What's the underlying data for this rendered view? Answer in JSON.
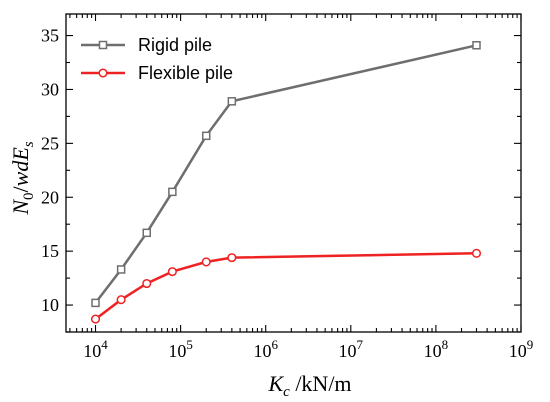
{
  "chart_data": {
    "type": "line",
    "x_scale": "log",
    "xlabel": "K_c /kN/m",
    "ylabel": "N_0/wdE_s",
    "xlim": [
      4500,
      1000000000
    ],
    "ylim": [
      7.5,
      37
    ],
    "x_ticks": [
      {
        "value": 10000,
        "base": "10",
        "exp": "4"
      },
      {
        "value": 100000,
        "base": "10",
        "exp": "5"
      },
      {
        "value": 1000000,
        "base": "10",
        "exp": "6"
      },
      {
        "value": 10000000,
        "base": "10",
        "exp": "7"
      },
      {
        "value": 100000000,
        "base": "10",
        "exp": "8"
      },
      {
        "value": 1000000000,
        "base": "10",
        "exp": "9"
      }
    ],
    "y_ticks": [
      10,
      15,
      20,
      25,
      30,
      35
    ],
    "grid": false,
    "legend_position": "top-left",
    "series": [
      {
        "name": "Rigid pile",
        "color": "#6e6e6e",
        "marker": "square",
        "x": [
          10000,
          20000,
          40000,
          80000,
          200000,
          400000,
          300000000
        ],
        "y": [
          10.2,
          13.3,
          16.7,
          20.5,
          25.7,
          28.9,
          34.1
        ]
      },
      {
        "name": "Flexible pile",
        "color": "#ee2222",
        "marker": "circle",
        "x": [
          10000,
          20000,
          40000,
          80000,
          200000,
          400000,
          300000000
        ],
        "y": [
          8.7,
          10.5,
          12.0,
          13.1,
          14.0,
          14.4,
          14.8
        ]
      }
    ]
  }
}
